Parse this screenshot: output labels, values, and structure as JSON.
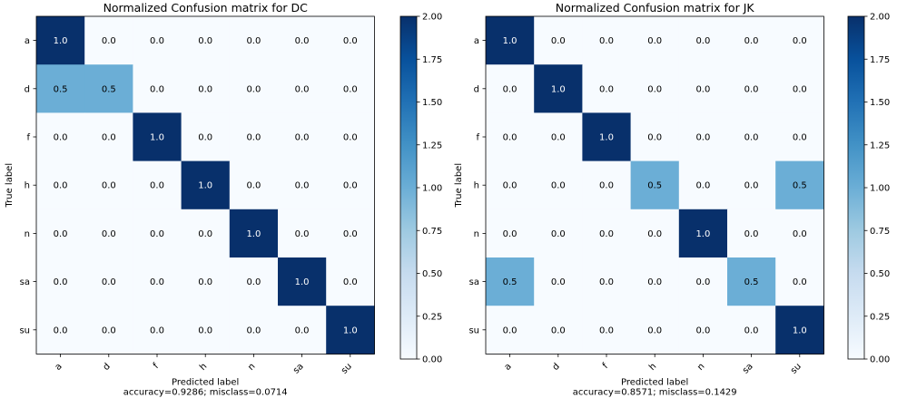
{
  "chart_data": [
    {
      "type": "heatmap",
      "title": "Normalized Confusion matrix for DC",
      "xlabel": "Predicted label",
      "xlabel_sub": "accuracy=0.9286; misclass=0.0714",
      "ylabel": "True label",
      "categories": [
        "a",
        "d",
        "f",
        "h",
        "n",
        "sa",
        "su"
      ],
      "values": [
        [
          1.0,
          0.0,
          0.0,
          0.0,
          0.0,
          0.0,
          0.0
        ],
        [
          0.5,
          0.5,
          0.0,
          0.0,
          0.0,
          0.0,
          0.0
        ],
        [
          0.0,
          0.0,
          1.0,
          0.0,
          0.0,
          0.0,
          0.0
        ],
        [
          0.0,
          0.0,
          0.0,
          1.0,
          0.0,
          0.0,
          0.0
        ],
        [
          0.0,
          0.0,
          0.0,
          0.0,
          1.0,
          0.0,
          0.0
        ],
        [
          0.0,
          0.0,
          0.0,
          0.0,
          0.0,
          1.0,
          0.0
        ],
        [
          0.0,
          0.0,
          0.0,
          0.0,
          0.0,
          0.0,
          1.0
        ]
      ],
      "colorbar": {
        "min": 0.0,
        "max": 2.0,
        "ticks": [
          "0.00",
          "0.25",
          "0.50",
          "0.75",
          "1.00",
          "1.25",
          "1.50",
          "1.75",
          "2.00"
        ]
      },
      "colormap": "Blues"
    },
    {
      "type": "heatmap",
      "title": "Normalized Confusion matrix for JK",
      "xlabel": "Predicted label",
      "xlabel_sub": "accuracy=0.8571; misclass=0.1429",
      "ylabel": "True label",
      "categories": [
        "a",
        "d",
        "f",
        "h",
        "n",
        "sa",
        "su"
      ],
      "values": [
        [
          1.0,
          0.0,
          0.0,
          0.0,
          0.0,
          0.0,
          0.0
        ],
        [
          0.0,
          1.0,
          0.0,
          0.0,
          0.0,
          0.0,
          0.0
        ],
        [
          0.0,
          0.0,
          1.0,
          0.0,
          0.0,
          0.0,
          0.0
        ],
        [
          0.0,
          0.0,
          0.0,
          0.5,
          0.0,
          0.0,
          0.5
        ],
        [
          0.0,
          0.0,
          0.0,
          0.0,
          1.0,
          0.0,
          0.0
        ],
        [
          0.5,
          0.0,
          0.0,
          0.0,
          0.0,
          0.5,
          0.0
        ],
        [
          0.0,
          0.0,
          0.0,
          0.0,
          0.0,
          0.0,
          1.0
        ]
      ],
      "colorbar": {
        "min": 0.0,
        "max": 2.0,
        "ticks": [
          "0.00",
          "0.25",
          "0.50",
          "0.75",
          "1.00",
          "1.25",
          "1.50",
          "1.75",
          "2.00"
        ]
      },
      "colormap": "Blues"
    }
  ]
}
